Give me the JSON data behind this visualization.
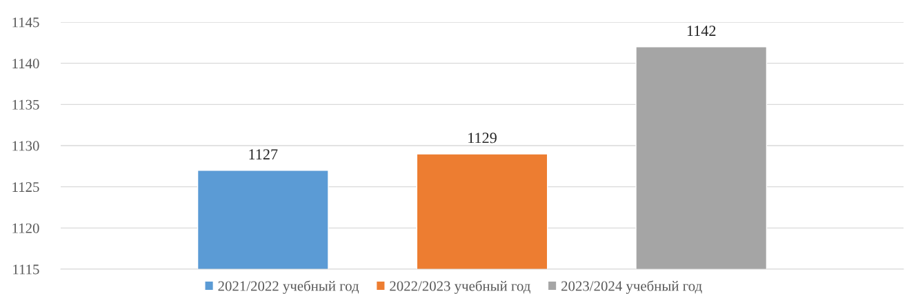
{
  "chart_data": {
    "type": "bar",
    "categories": [
      null
    ],
    "series": [
      {
        "name": "2021/2022 учебный год",
        "color": "#5b9bd5",
        "values": [
          1127
        ]
      },
      {
        "name": "2022/2023 учебный год",
        "color": "#ed7d31",
        "values": [
          1129
        ]
      },
      {
        "name": "2023/2024 учебный год",
        "color": "#a5a5a5",
        "values": [
          1142
        ]
      }
    ],
    "ylim": [
      1115,
      1145
    ],
    "yticks": [
      1115,
      1120,
      1125,
      1130,
      1135,
      1140,
      1145
    ],
    "grid": "y",
    "legend": "bottom",
    "data_labels": true
  }
}
